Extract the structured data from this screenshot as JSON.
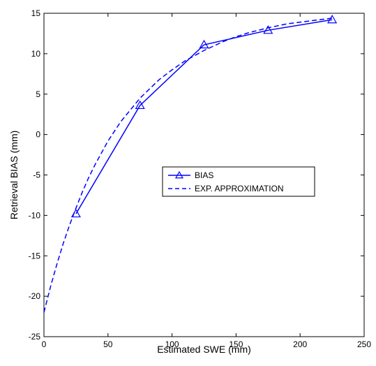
{
  "chart_data": {
    "type": "line",
    "xlabel": "Estimated SWE (mm)",
    "ylabel": "Retrieval BIAS (mm)",
    "xlim": [
      0,
      250
    ],
    "ylim": [
      -25,
      15
    ],
    "xticks": [
      0,
      50,
      100,
      150,
      200,
      250
    ],
    "yticks": [
      -25,
      -20,
      -15,
      -10,
      -5,
      0,
      5,
      10,
      15
    ],
    "grid": false,
    "legend_position": "center-right",
    "series": [
      {
        "name": "BIAS",
        "style": "solid",
        "marker": "triangle",
        "color": "#0000ff",
        "x": [
          25,
          75,
          125,
          175,
          225
        ],
        "y": [
          -9.8,
          3.6,
          11.1,
          12.9,
          14.2
        ]
      },
      {
        "name": "EXP. APPROXIMATION",
        "style": "dashed",
        "marker": "none",
        "color": "#0000ff",
        "x": [
          0,
          5,
          10,
          15,
          20,
          25,
          30,
          35,
          40,
          50,
          60,
          75,
          90,
          100,
          110,
          125,
          140,
          150,
          160,
          175,
          190,
          200,
          210,
          225
        ],
        "y": [
          -22.0,
          -18.9,
          -16.1,
          -13.5,
          -11.2,
          -9.1,
          -7.1,
          -5.3,
          -3.7,
          -0.8,
          1.6,
          4.5,
          6.8,
          8.0,
          9.1,
          10.4,
          11.5,
          12.1,
          12.6,
          13.2,
          13.7,
          13.9,
          14.1,
          14.4
        ]
      }
    ]
  }
}
